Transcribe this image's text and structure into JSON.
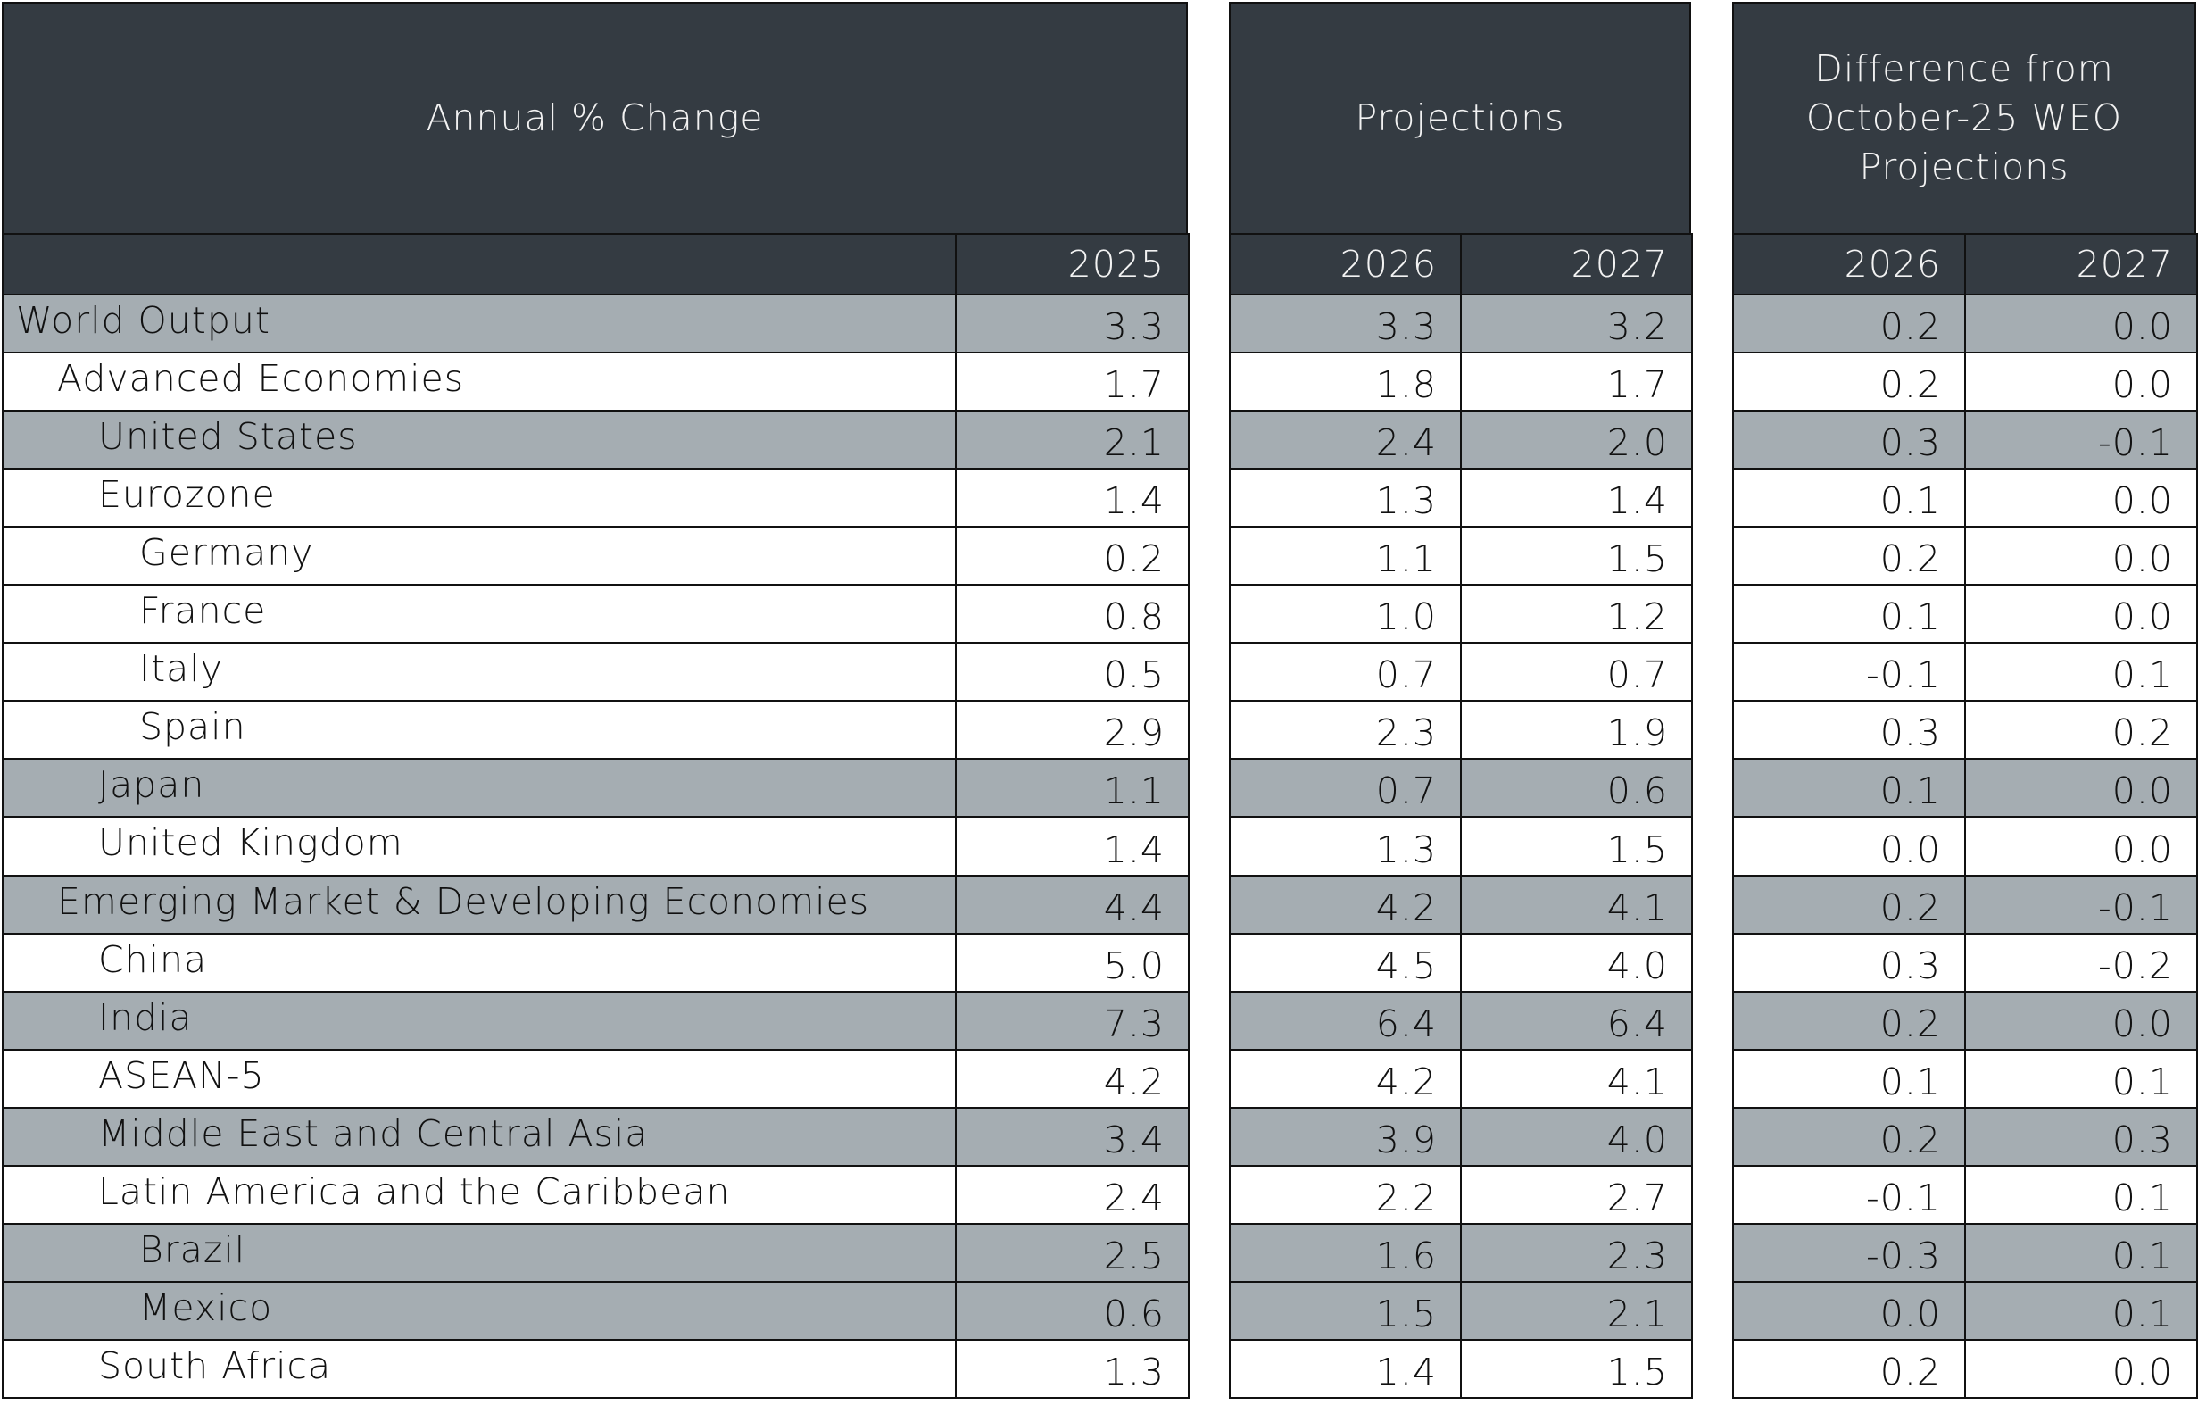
{
  "groups": [
    {
      "title": "Annual % Change",
      "years": [
        "2025"
      ]
    },
    {
      "title": "Projections",
      "years": [
        "2026",
        "2027"
      ]
    },
    {
      "title": "Difference from October-25 WEO Projections",
      "years": [
        "2026",
        "2027"
      ]
    }
  ],
  "rows": [
    {
      "label": "World Output",
      "values": [
        "3.3",
        "3.3",
        "3.2",
        "0.2",
        "0.0"
      ]
    },
    {
      "label": "Advanced Economies",
      "values": [
        "1.7",
        "1.8",
        "1.7",
        "0.2",
        "0.0"
      ]
    },
    {
      "label": "United States",
      "values": [
        "2.1",
        "2.4",
        "2.0",
        "0.3",
        "-0.1"
      ]
    },
    {
      "label": "Eurozone",
      "values": [
        "1.4",
        "1.3",
        "1.4",
        "0.1",
        "0.0"
      ]
    },
    {
      "label": "Germany",
      "values": [
        "0.2",
        "1.1",
        "1.5",
        "0.2",
        "0.0"
      ]
    },
    {
      "label": "France",
      "values": [
        "0.8",
        "1.0",
        "1.2",
        "0.1",
        "0.0"
      ]
    },
    {
      "label": "Italy",
      "values": [
        "0.5",
        "0.7",
        "0.7",
        "-0.1",
        "0.1"
      ]
    },
    {
      "label": "Spain",
      "values": [
        "2.9",
        "2.3",
        "1.9",
        "0.3",
        "0.2"
      ]
    },
    {
      "label": "Japan",
      "values": [
        "1.1",
        "0.7",
        "0.6",
        "0.1",
        "0.0"
      ]
    },
    {
      "label": "United Kingdom",
      "values": [
        "1.4",
        "1.3",
        "1.5",
        "0.0",
        "0.0"
      ]
    },
    {
      "label": "Emerging Market & Developing Economies",
      "values": [
        "4.4",
        "4.2",
        "4.1",
        "0.2",
        "-0.1"
      ]
    },
    {
      "label": "China",
      "values": [
        "5.0",
        "4.5",
        "4.0",
        "0.3",
        "-0.2"
      ]
    },
    {
      "label": "India",
      "values": [
        "7.3",
        "6.4",
        "6.4",
        "0.2",
        "0.0"
      ]
    },
    {
      "label": "ASEAN-5",
      "values": [
        "4.2",
        "4.2",
        "4.1",
        "0.1",
        "0.1"
      ]
    },
    {
      "label": "Middle East and Central Asia",
      "values": [
        "3.4",
        "3.9",
        "4.0",
        "0.2",
        "0.3"
      ]
    },
    {
      "label": "Latin America and the Caribbean",
      "values": [
        "2.4",
        "2.2",
        "2.7",
        "-0.1",
        "0.1"
      ]
    },
    {
      "label": "Brazil",
      "values": [
        "2.5",
        "1.6",
        "2.3",
        "-0.3",
        "0.1"
      ]
    },
    {
      "label": "Mexico",
      "values": [
        "0.6",
        "1.5",
        "2.1",
        "0.0",
        "0.1"
      ]
    },
    {
      "label": "South Africa",
      "values": [
        "1.3",
        "1.4",
        "1.5",
        "0.2",
        "0.0"
      ]
    }
  ]
}
